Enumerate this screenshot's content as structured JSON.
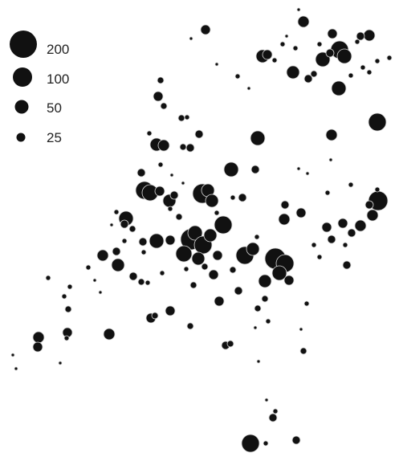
{
  "legend": {
    "entries": [
      {
        "value": 200,
        "label": "200"
      },
      {
        "value": 100,
        "label": "100"
      },
      {
        "value": 50,
        "label": "50"
      },
      {
        "value": 25,
        "label": "25"
      }
    ]
  },
  "colors": {
    "bubble_fill": "#111111",
    "bubble_outline": "#d9d9d9",
    "background": "#ffffff",
    "text": "#222222"
  }
}
